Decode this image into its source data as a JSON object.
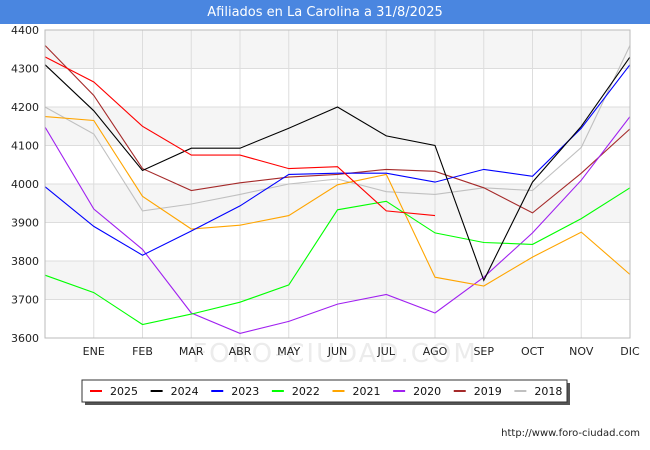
{
  "header": {
    "title": "Afiliados en La Carolina a 31/8/2025"
  },
  "footer": {
    "source": "http://www.foro-ciudad.com"
  },
  "watermark": "FORO-CIUDAD.COM",
  "chart_data": {
    "type": "line",
    "title": "Afiliados en La Carolina a 31/8/2025",
    "categories": [
      "",
      "ENE",
      "FEB",
      "MAR",
      "ABR",
      "MAY",
      "JUN",
      "JUL",
      "AGO",
      "SEP",
      "OCT",
      "NOV",
      "DIC"
    ],
    "ylim": [
      3600,
      4400
    ],
    "yticks": [
      3600,
      3700,
      3800,
      3900,
      4000,
      4100,
      4200,
      4300,
      4400
    ],
    "grid": true,
    "legend_position": "bottom",
    "series": [
      {
        "name": "2025",
        "color": "#ff0000",
        "values": [
          4330,
          4265,
          4150,
          4075,
          4075,
          4040,
          4045,
          3930,
          3918,
          null,
          null,
          null,
          null
        ]
      },
      {
        "name": "2024",
        "color": "#000000",
        "values": [
          4310,
          4190,
          4035,
          4093,
          4093,
          4145,
          4200,
          4125,
          4100,
          3750,
          4005,
          4150,
          4330
        ]
      },
      {
        "name": "2023",
        "color": "#0000ff",
        "values": [
          3993,
          3890,
          3815,
          3878,
          3943,
          4025,
          4028,
          4028,
          4005,
          4038,
          4020,
          4145,
          4310
        ]
      },
      {
        "name": "2022",
        "color": "#00ff00",
        "values": [
          3763,
          3718,
          3635,
          3662,
          3693,
          3738,
          3933,
          3955,
          3873,
          3848,
          3843,
          3910,
          3990
        ]
      },
      {
        "name": "2021",
        "color": "#ffa500",
        "values": [
          4175,
          4165,
          3968,
          3883,
          3893,
          3918,
          3998,
          4025,
          3758,
          3735,
          3810,
          3875,
          3765
        ]
      },
      {
        "name": "2020",
        "color": "#a020f0",
        "values": [
          4148,
          3935,
          3830,
          3665,
          3612,
          3643,
          3688,
          3713,
          3665,
          3758,
          3873,
          4010,
          4175
        ]
      },
      {
        "name": "2019",
        "color": "#a52a2a",
        "values": [
          4360,
          4230,
          4040,
          3983,
          4003,
          4018,
          4025,
          4038,
          4033,
          3990,
          3925,
          4028,
          4143
        ]
      },
      {
        "name": "2018",
        "color": "#c0c0c0",
        "values": [
          4200,
          4130,
          3930,
          3948,
          3973,
          4000,
          4013,
          3980,
          3973,
          3990,
          3983,
          4095,
          4360
        ]
      }
    ]
  }
}
